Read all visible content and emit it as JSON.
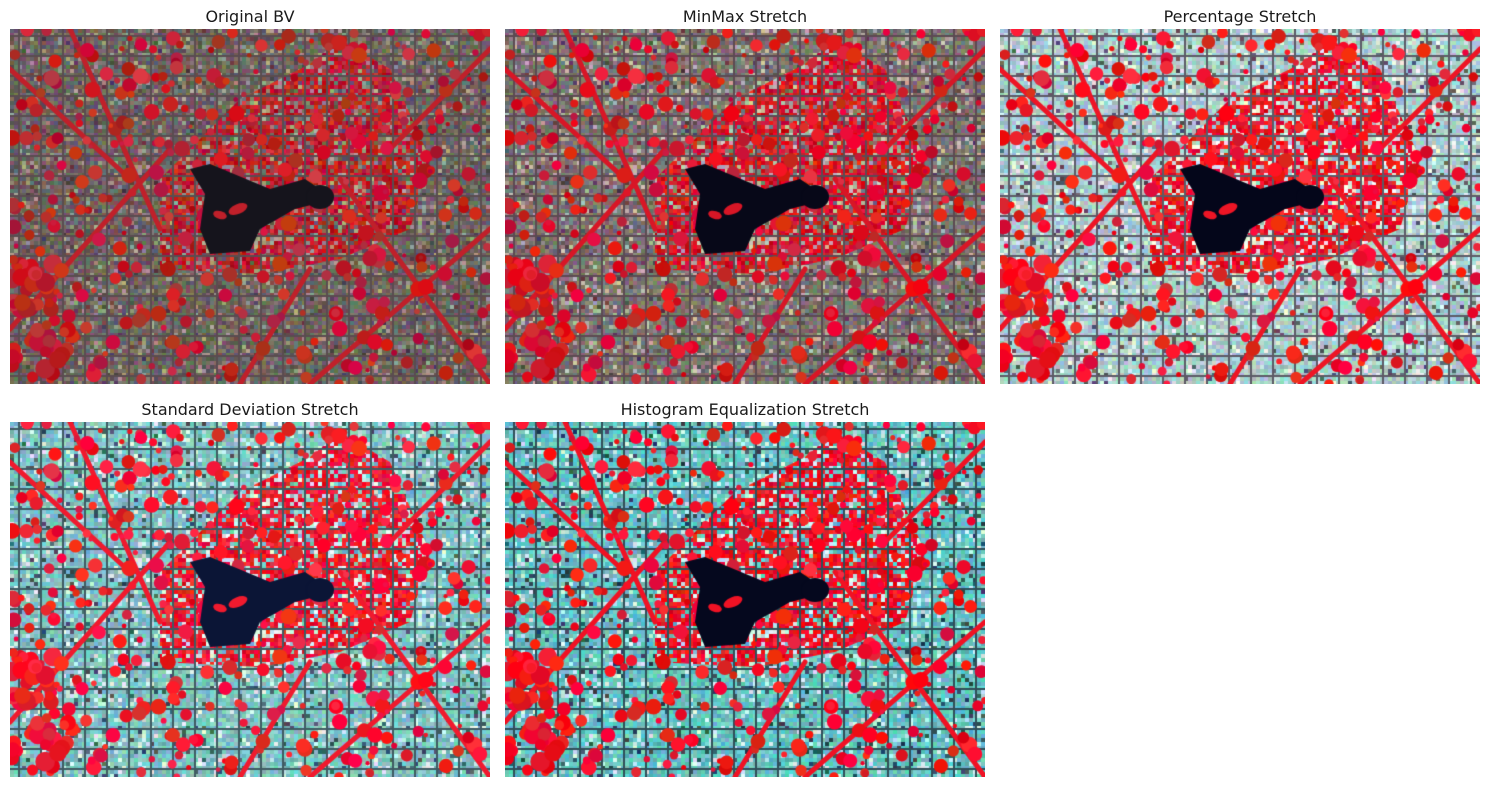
{
  "panels": [
    {
      "title": "Original BV",
      "style": "original"
    },
    {
      "title": "MinMax Stretch",
      "style": "minmax"
    },
    {
      "title": "Percentage Stretch",
      "style": "percentage"
    },
    {
      "title": "Standard Deviation Stretch",
      "style": "stddev"
    },
    {
      "title": "Histogram Equalization Stretch",
      "style": "histeq"
    }
  ],
  "colors": {
    "original": {
      "urban": "#6e6560",
      "veg": "#c0202a",
      "water": "#15141c",
      "road": "#5a4c50",
      "light": "#9d9888"
    },
    "minmax": {
      "urban": "#7c7570",
      "veg": "#d81626",
      "water": "#070818",
      "road": "#5c4a52",
      "light": "#b8b4a6"
    },
    "percentage": {
      "urban": "#a9cccc",
      "veg": "#ee1525",
      "water": "#04061a",
      "road": "#5c5a66",
      "light": "#e2efe4"
    },
    "stddev": {
      "urban": "#7fc3c3",
      "veg": "#f01a2e",
      "water": "#0b1536",
      "road": "#3f5a62",
      "light": "#d6eeea"
    },
    "histeq": {
      "urban": "#66c2c2",
      "veg": "#f01224",
      "water": "#05081e",
      "road": "#2f4e58",
      "light": "#c8ecec"
    }
  }
}
